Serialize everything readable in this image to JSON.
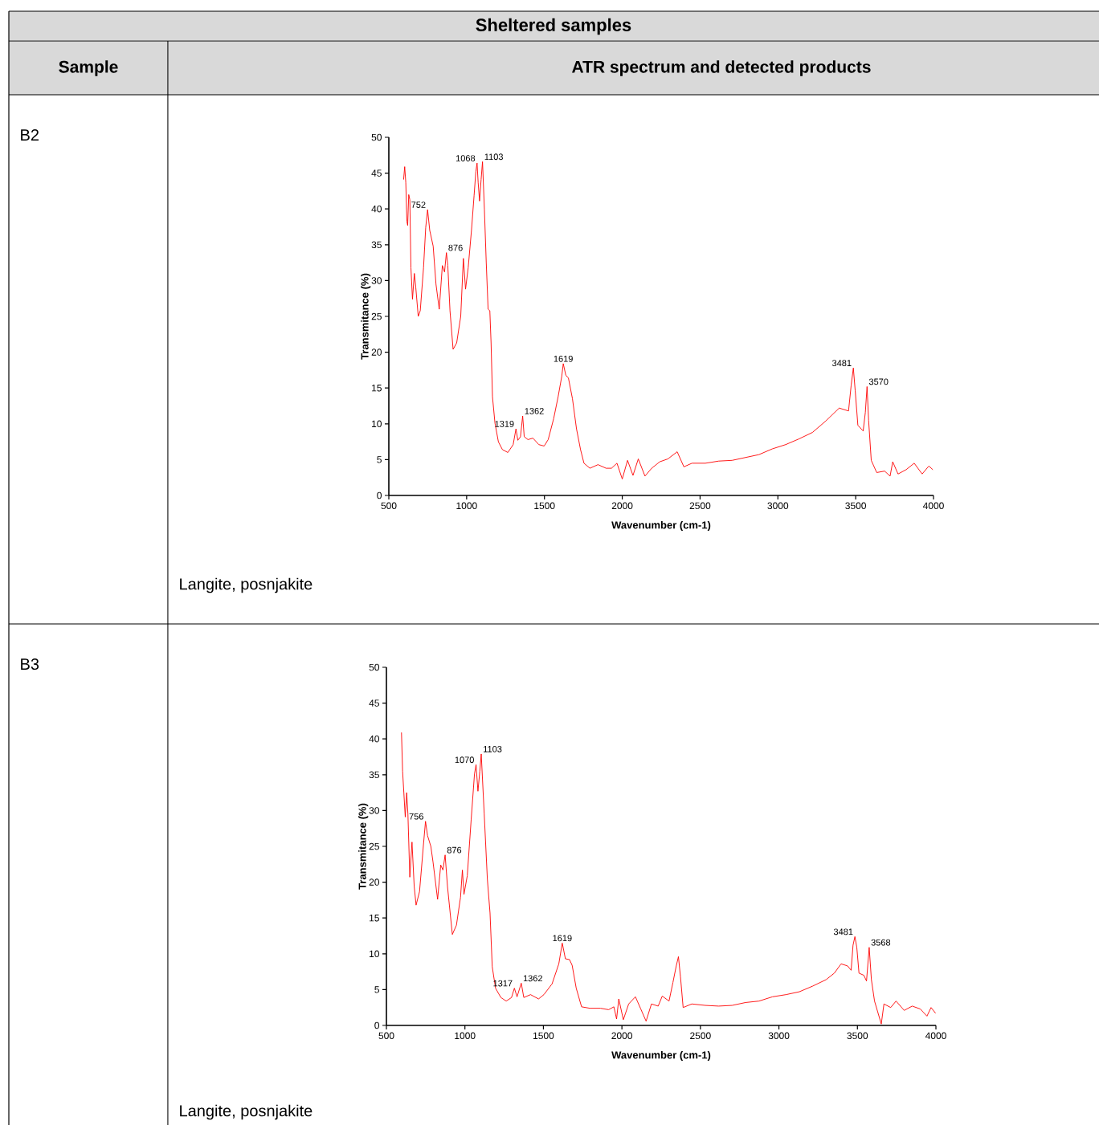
{
  "chart_data": [
    {
      "type": "line",
      "title": "Sheltered samples",
      "xlabel": "Wavenumber (cm-1)",
      "ylabel": "Transmitance (%)",
      "color": "#ff0000",
      "xlim": [
        500,
        4000
      ],
      "ylim": [
        0,
        50
      ],
      "xticks": [
        500,
        1000,
        1500,
        2000,
        2500,
        3000,
        3500,
        4000
      ],
      "yticks": [
        0,
        5,
        10,
        15,
        20,
        25,
        30,
        35,
        40,
        45,
        50
      ],
      "x": [
        595,
        602,
        609,
        616,
        621,
        628,
        635,
        642,
        652,
        664,
        673,
        689,
        702,
        723,
        737,
        749,
        763,
        785,
        803,
        824,
        844,
        858,
        870,
        879,
        893,
        913,
        936,
        962,
        979,
        993,
        1010,
        1031,
        1048,
        1059,
        1067,
        1074,
        1083,
        1093,
        1102,
        1114,
        1126,
        1138,
        1149,
        1157,
        1166,
        1182,
        1204,
        1230,
        1265,
        1299,
        1317,
        1329,
        1346,
        1360,
        1370,
        1394,
        1426,
        1464,
        1498,
        1524,
        1559,
        1588,
        1611,
        1621,
        1637,
        1654,
        1680,
        1706,
        1732,
        1754,
        1792,
        1844,
        1896,
        1931,
        1966,
        2000,
        2034,
        2069,
        2103,
        2146,
        2189,
        2241,
        2293,
        2353,
        2396,
        2448,
        2534,
        2620,
        2706,
        2792,
        2878,
        2964,
        3050,
        3136,
        3222,
        3308,
        3394,
        3454,
        3471,
        3485,
        3497,
        3514,
        3548,
        3562,
        3573,
        3583,
        3600,
        3635,
        3686,
        3721,
        3738,
        3772,
        3824,
        3876,
        3927,
        3970,
        3996
      ],
      "values": [
        44.1,
        45.9,
        43.7,
        38.3,
        37.7,
        42.0,
        41.3,
        31.8,
        27.4,
        31.0,
        29.1,
        25.0,
        25.8,
        31.8,
        37.4,
        39.9,
        37.0,
        34.8,
        29.5,
        26.0,
        32.1,
        31.2,
        33.9,
        32.1,
        25.8,
        20.4,
        21.3,
        25.0,
        33.1,
        28.8,
        31.8,
        37.0,
        41.9,
        45.2,
        46.4,
        43.7,
        41.1,
        44.1,
        46.6,
        40.0,
        32.5,
        26.0,
        25.8,
        21.3,
        13.8,
        10.1,
        7.5,
        6.4,
        6.0,
        7.1,
        9.3,
        7.7,
        8.2,
        11.1,
        8.2,
        7.8,
        8.0,
        7.1,
        6.9,
        7.8,
        10.7,
        13.8,
        16.6,
        18.4,
        16.8,
        16.4,
        13.5,
        9.3,
        6.4,
        4.5,
        3.8,
        4.3,
        3.8,
        3.8,
        4.5,
        2.3,
        4.9,
        2.8,
        5.1,
        2.7,
        3.8,
        4.7,
        5.1,
        6.1,
        4.0,
        4.5,
        4.5,
        4.8,
        4.9,
        5.3,
        5.7,
        6.5,
        7.1,
        7.9,
        8.8,
        10.4,
        12.2,
        11.8,
        15.4,
        17.8,
        14.6,
        9.8,
        9.0,
        11.6,
        15.2,
        10.5,
        4.9,
        3.2,
        3.4,
        2.7,
        4.7,
        3.0,
        3.6,
        4.5,
        3.0,
        4.1,
        3.6
      ],
      "annotations": [
        "Sample",
        "ATR spectrum and detected products",
        "B2",
        "Langite, posnjakite",
        {
          "text": "752",
          "x": 749,
          "y": 39.9
        },
        {
          "text": "876",
          "x": 870,
          "y": 33.9
        },
        {
          "text": "1068",
          "x": 1067,
          "y": 46.4
        },
        {
          "text": "1103",
          "x": 1102,
          "y": 46.6
        },
        {
          "text": "1319",
          "x": 1317,
          "y": 9.3
        },
        {
          "text": "1362",
          "x": 1360,
          "y": 11.1
        },
        {
          "text": "1619",
          "x": 1621,
          "y": 18.4
        },
        {
          "text": "3481",
          "x": 3485,
          "y": 17.8
        },
        {
          "text": "3570",
          "x": 3573,
          "y": 15.2
        }
      ]
    },
    {
      "type": "line",
      "xlabel": "Wavenumber (cm-1)",
      "ylabel": "Transmitance (%)",
      "color": "#ff0000",
      "xlim": [
        500,
        4000
      ],
      "ylim": [
        0,
        50
      ],
      "xticks": [
        500,
        1000,
        1500,
        2000,
        2500,
        3000,
        3500,
        4000
      ],
      "yticks": [
        0,
        5,
        10,
        15,
        20,
        25,
        30,
        35,
        40,
        45,
        50
      ],
      "x": [
        596,
        603,
        611,
        620,
        629,
        637,
        649,
        663,
        677,
        689,
        711,
        735,
        749,
        762,
        783,
        797,
        826,
        846,
        860,
        874,
        889,
        920,
        946,
        972,
        984,
        994,
        1015,
        1040,
        1061,
        1071,
        1083,
        1095,
        1104,
        1123,
        1143,
        1160,
        1174,
        1195,
        1229,
        1263,
        1297,
        1315,
        1332,
        1359,
        1375,
        1418,
        1469,
        1503,
        1555,
        1598,
        1620,
        1640,
        1666,
        1683,
        1709,
        1743,
        1795,
        1863,
        1915,
        1949,
        1966,
        1980,
        2009,
        2043,
        2086,
        2120,
        2154,
        2188,
        2231,
        2257,
        2300,
        2325,
        2346,
        2360,
        2373,
        2390,
        2445,
        2531,
        2616,
        2702,
        2788,
        2873,
        2959,
        3045,
        3130,
        3216,
        3301,
        3353,
        3396,
        3438,
        3460,
        3472,
        3484,
        3496,
        3510,
        3541,
        3558,
        3575,
        3589,
        3609,
        3652,
        3669,
        3712,
        3746,
        3798,
        3849,
        3900,
        3943,
        3969,
        3998
      ],
      "values": [
        40.9,
        35.5,
        32.5,
        29.1,
        32.5,
        29.5,
        20.7,
        25.6,
        19.4,
        16.8,
        18.7,
        25.0,
        28.5,
        26.5,
        25.0,
        22.8,
        17.6,
        22.4,
        21.7,
        23.8,
        19.4,
        12.7,
        14.0,
        17.9,
        21.7,
        18.3,
        20.9,
        28.8,
        35.1,
        36.4,
        32.7,
        35.5,
        37.9,
        29.5,
        20.4,
        15.7,
        8.2,
        5.2,
        3.9,
        3.4,
        3.9,
        5.2,
        4.0,
        5.9,
        3.9,
        4.3,
        3.7,
        4.3,
        5.8,
        8.6,
        11.5,
        9.3,
        9.2,
        8.4,
        5.2,
        2.6,
        2.4,
        2.4,
        2.2,
        2.6,
        0.9,
        3.7,
        0.8,
        3.0,
        4.0,
        2.3,
        0.6,
        3.0,
        2.7,
        4.1,
        3.4,
        6.0,
        8.3,
        9.6,
        6.8,
        2.5,
        3.0,
        2.8,
        2.7,
        2.8,
        3.2,
        3.4,
        4.0,
        4.3,
        4.7,
        5.5,
        6.4,
        7.3,
        8.6,
        8.3,
        7.7,
        11.2,
        12.4,
        10.9,
        7.3,
        7.0,
        6.2,
        10.9,
        6.4,
        3.4,
        0.2,
        3.0,
        2.5,
        3.4,
        2.1,
        2.7,
        2.3,
        1.3,
        2.5,
        1.7
      ],
      "annotations": [
        "B3",
        "Langite, posnjakite",
        {
          "text": "756",
          "x": 749,
          "y": 28.5
        },
        {
          "text": "876",
          "x": 874,
          "y": 23.8
        },
        {
          "text": "1070",
          "x": 1071,
          "y": 36.4
        },
        {
          "text": "1103",
          "x": 1104,
          "y": 37.9
        },
        {
          "text": "1317",
          "x": 1315,
          "y": 5.2
        },
        {
          "text": "1362",
          "x": 1359,
          "y": 5.9
        },
        {
          "text": "1619",
          "x": 1620,
          "y": 11.5
        },
        {
          "text": "3481",
          "x": 3484,
          "y": 12.4
        },
        {
          "text": "3568",
          "x": 3575,
          "y": 10.9
        }
      ]
    }
  ]
}
